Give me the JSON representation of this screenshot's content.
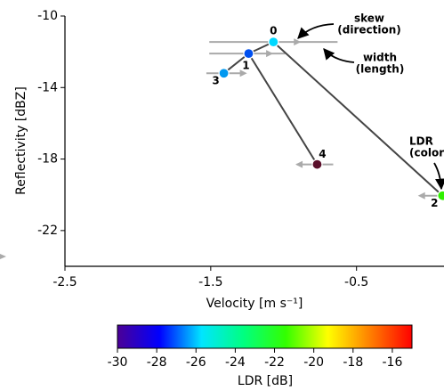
{
  "chart_data": {
    "type": "scatter",
    "xlabel": "Velocity [m s⁻¹]",
    "ylabel": "Reflectivity [dBZ]",
    "xlim": [
      -2.5,
      0.1
    ],
    "xticks": [
      -2.5,
      -1.5,
      -0.5
    ],
    "ylim": [
      -24,
      -10
    ],
    "yticks": [
      -10,
      -14,
      -18,
      -22
    ],
    "points": [
      {
        "label": "0",
        "velocity": -1.07,
        "reflectivity": -11.45,
        "ldr": -24,
        "color": "#00d8ff",
        "width_range": [
          -1.51,
          -0.63
        ],
        "skew": -0.93,
        "skew_direction": "right"
      },
      {
        "label": "1",
        "velocity": -1.24,
        "reflectivity": -12.1,
        "ldr": -27,
        "color": "#0050f0",
        "width_range": [
          -1.51,
          -0.99
        ],
        "skew": -1.12,
        "skew_direction": "right"
      },
      {
        "label": "2",
        "velocity": 0.09,
        "reflectivity": -20.05,
        "ldr": -21,
        "color": "#30f000",
        "width_range": [
          -0.05,
          0.25
        ],
        "skew": -0.03,
        "skew_direction": "left"
      },
      {
        "label": "3",
        "velocity": -1.41,
        "reflectivity": -13.2,
        "ldr": -25,
        "color": "#0098f0",
        "width_range": [
          -1.53,
          -1.27
        ],
        "skew": -1.3,
        "skew_direction": "right"
      },
      {
        "label": "4",
        "velocity": -0.77,
        "reflectivity": -18.3,
        "ldr": -14,
        "color": "#5a0f2a",
        "width_range": [
          -0.91,
          -0.66
        ],
        "skew": -0.87,
        "skew_direction": "left"
      }
    ],
    "links": [
      [
        0,
        1
      ],
      [
        1,
        3
      ],
      [
        1,
        4
      ],
      [
        0,
        2
      ]
    ],
    "annotations": {
      "skew": [
        "skew",
        "(direction)"
      ],
      "width": [
        "width",
        "(length)"
      ],
      "ldr": [
        "LDR",
        "(color)"
      ]
    },
    "colorbar": {
      "label": "LDR [dB]",
      "clim": [
        -30,
        -15
      ],
      "ticks": [
        -30,
        -28,
        -26,
        -24,
        -22,
        -20,
        -18,
        -16
      ],
      "colormap": [
        "#4b0096",
        "#0000ff",
        "#00e5ff",
        "#00ff80",
        "#33ff00",
        "#ffff00",
        "#ff8000",
        "#ff0000"
      ]
    }
  }
}
